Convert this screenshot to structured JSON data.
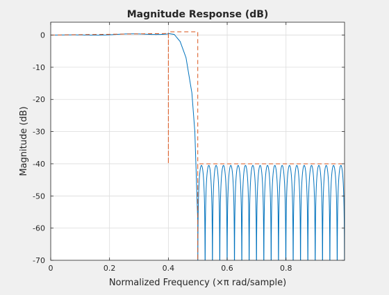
{
  "chart_data": {
    "type": "line",
    "title": "Magnitude Response (dB)",
    "xlabel": "Normalized Frequency (×π rad/sample)",
    "ylabel": "Magnitude (dB)",
    "xlim": [
      0,
      0.999
    ],
    "ylim": [
      -70,
      4
    ],
    "x_ticks": [
      0,
      0.2,
      0.4,
      0.6,
      0.8
    ],
    "x_tick_labels": [
      "0",
      "0.2",
      "0.4",
      "0.6",
      "0.8"
    ],
    "y_ticks": [
      0,
      -10,
      -20,
      -30,
      -40,
      -50,
      -60,
      -70
    ],
    "y_tick_labels": [
      "0",
      "-10",
      "-20",
      "-30",
      "-40",
      "-50",
      "-60",
      "-70"
    ],
    "grid": true,
    "legend": "none",
    "response": {
      "passband_edge": 0.4,
      "stopband_edge": 0.5,
      "passband_ripple_db": 0.5,
      "stopband_ripple_db": -40.5,
      "stopband_lobes": 20,
      "transition_points": [
        [
          0.4,
          0.5
        ],
        [
          0.42,
          0.2
        ],
        [
          0.44,
          -2
        ],
        [
          0.46,
          -7
        ],
        [
          0.48,
          -18
        ],
        [
          0.49,
          -30
        ],
        [
          0.5,
          -58
        ]
      ]
    },
    "mask": {
      "points": [
        [
          0,
          0
        ],
        [
          0.4,
          0.5
        ],
        [
          0.4,
          -40
        ],
        [
          0.4,
          1
        ],
        [
          0.5,
          1
        ],
        [
          0.5,
          -70
        ],
        [
          0.5,
          -40
        ],
        [
          0.999,
          -40
        ]
      ]
    },
    "colors": {
      "response": "#0072bd",
      "mask": "#d95319",
      "grid": "#dcdcdc",
      "axes_bg": "#ffffff",
      "figure_bg": "#f0f0f0"
    }
  }
}
